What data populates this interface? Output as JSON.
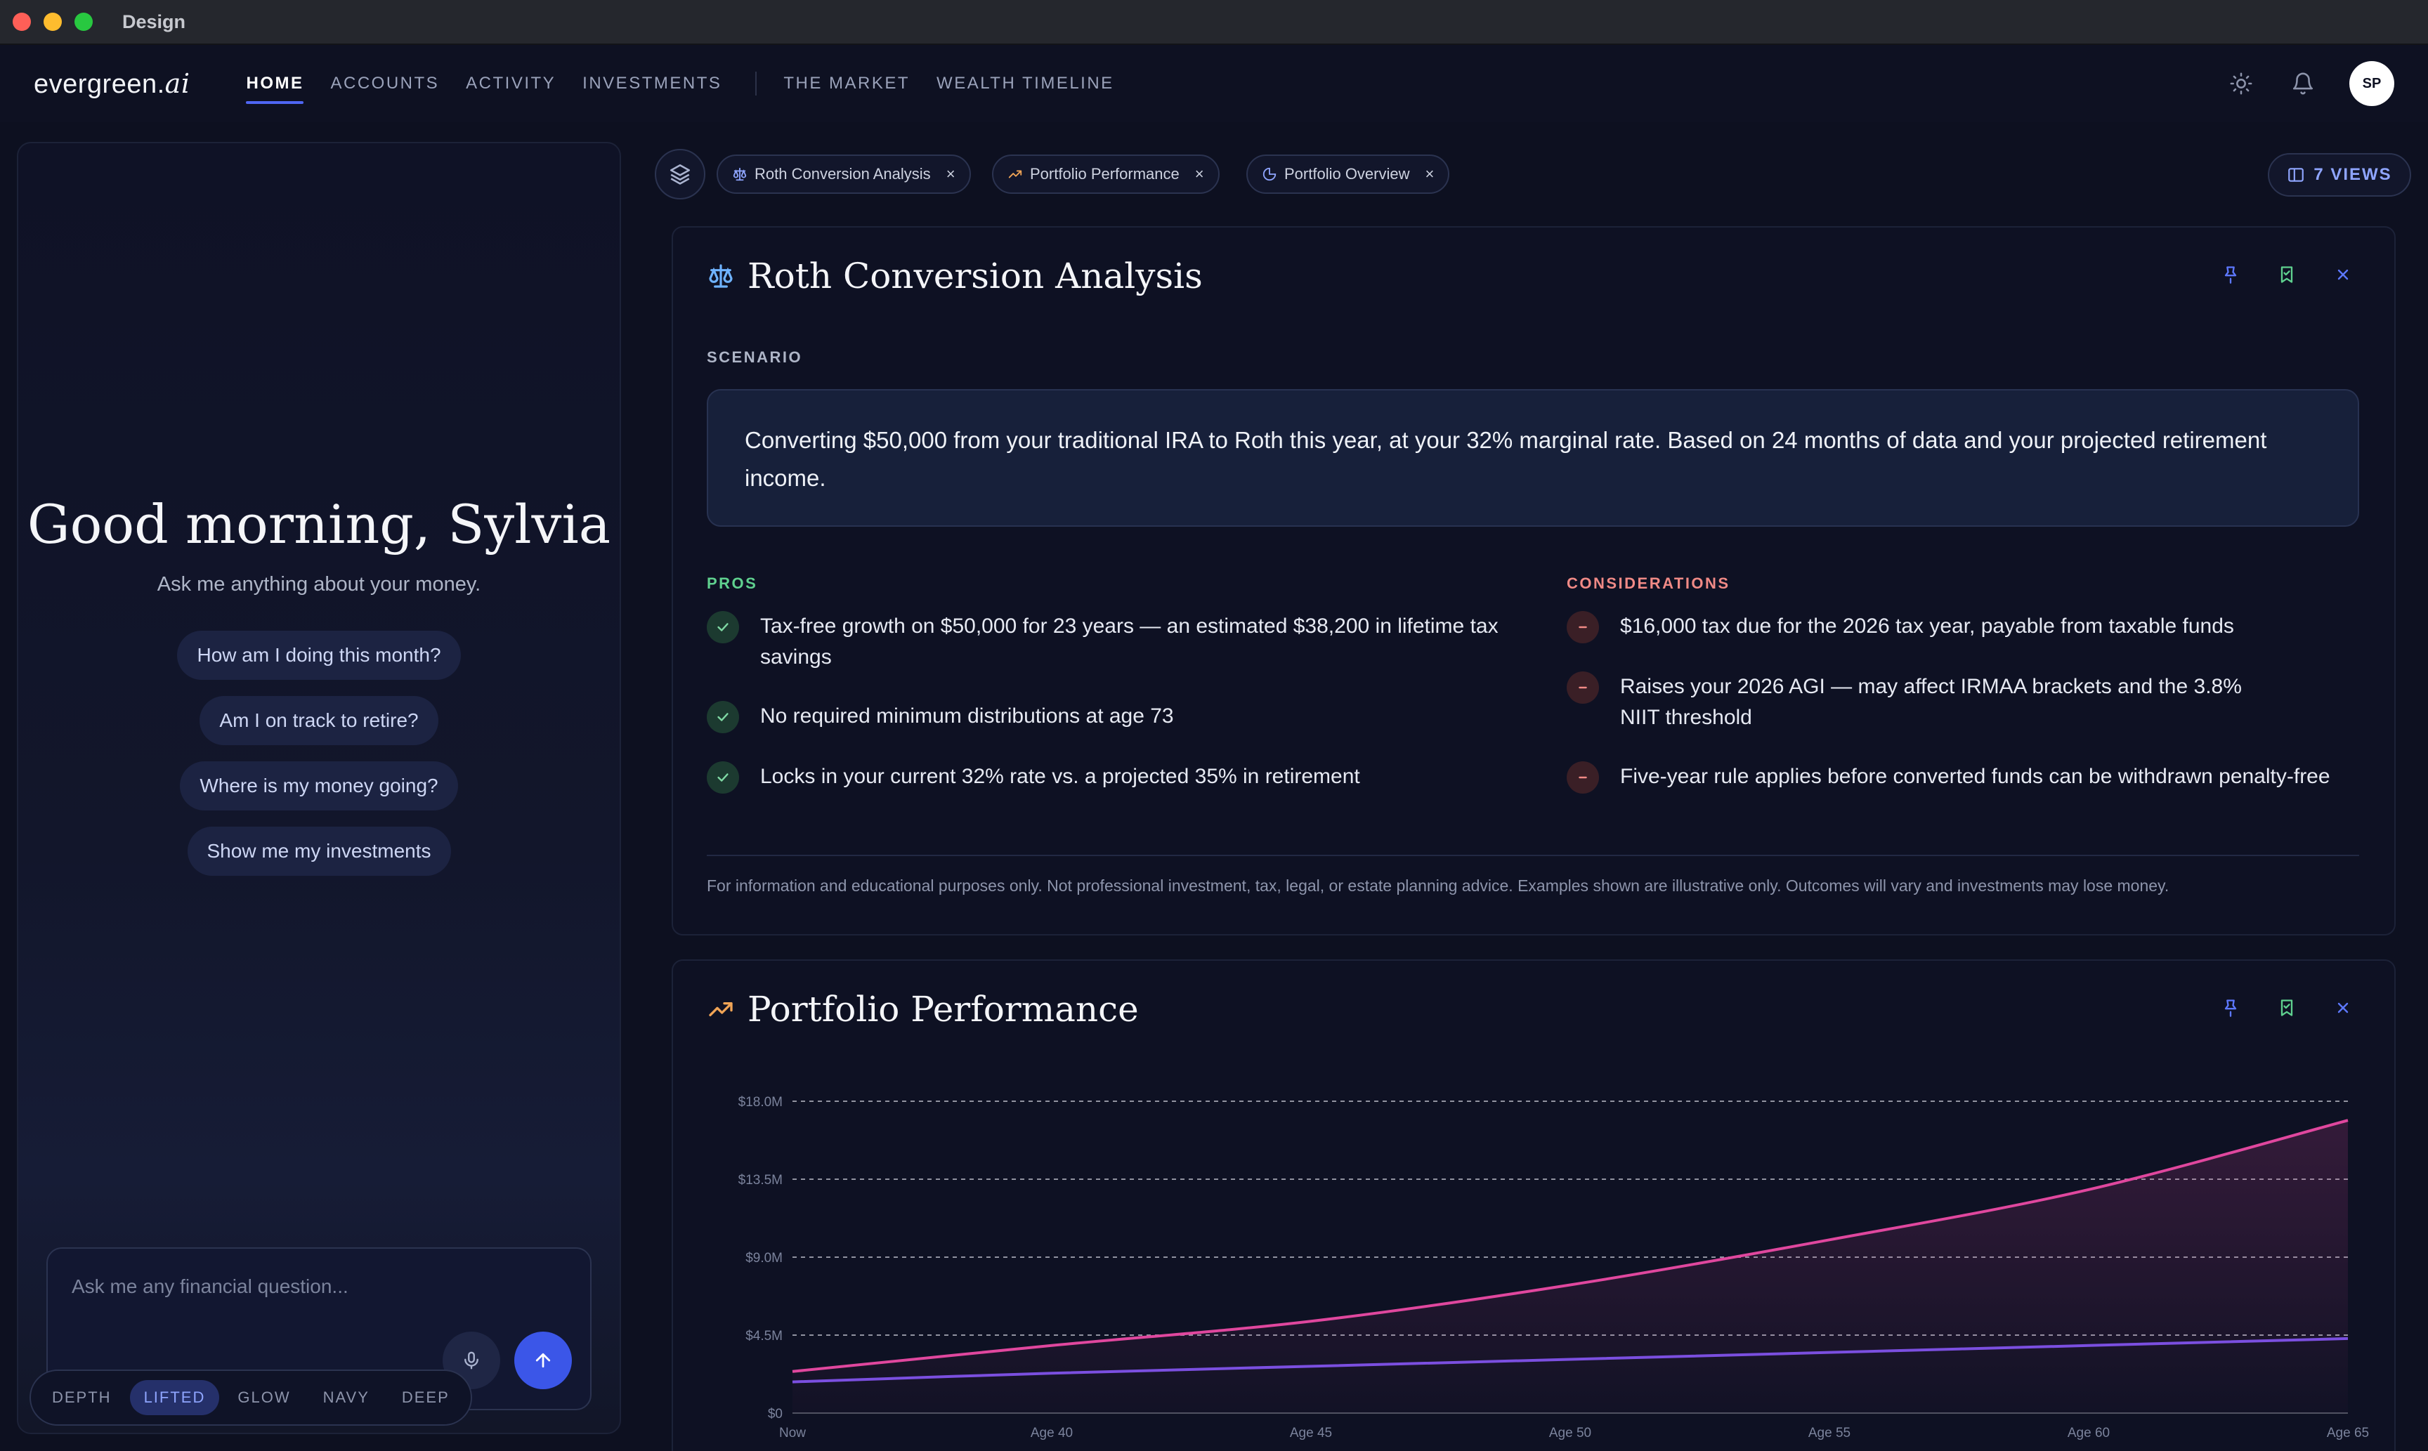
{
  "window": {
    "title": "Design"
  },
  "nav": {
    "logo_main": "evergreen.",
    "logo_suffix": "ai",
    "links": [
      "HOME",
      "ACCOUNTS",
      "ACTIVITY",
      "INVESTMENTS"
    ],
    "links_secondary": [
      "THE MARKET",
      "WEALTH TIMELINE"
    ],
    "active": "HOME",
    "avatar_initials": "SP"
  },
  "chat": {
    "greeting": "Good morning, Sylvia",
    "subtitle": "Ask me anything about your money.",
    "suggestions": [
      "How am I doing this month?",
      "Am I on track to retire?",
      "Where is my money going?",
      "Show me my investments"
    ],
    "input_placeholder": "Ask me any financial question...",
    "theme_options": [
      "DEPTH",
      "LIFTED",
      "GLOW",
      "NAVY",
      "DEEP"
    ],
    "theme_active": "LIFTED"
  },
  "view_tabs": [
    {
      "label": "Roth Conversion Analysis",
      "icon": "scale-icon"
    },
    {
      "label": "Portfolio Performance",
      "icon": "trending-up-icon"
    },
    {
      "label": "Portfolio Overview",
      "icon": "pie-chart-icon"
    }
  ],
  "views_button": "7 VIEWS",
  "roth": {
    "title": "Roth Conversion Analysis",
    "scenario_label": "SCENARIO",
    "scenario_text": "Converting $50,000 from your traditional IRA to Roth this year, at your 32% marginal rate. Based on 24 months of data and your projected retirement income.",
    "pros_label": "PROS",
    "pros": [
      "Tax-free growth on $50,000 for 23 years — an estimated $38,200 in lifetime tax savings",
      "No required minimum distributions at age 73",
      "Locks in your current 32% rate vs. a projected 35% in retirement"
    ],
    "cons_label": "CONSIDERATIONS",
    "cons": [
      "$16,000 tax due for the 2026 tax year, payable from taxable funds",
      "Raises your 2026 AGI — may affect IRMAA brackets and the 3.8% NIIT threshold",
      "Five-year rule applies before converted funds can be withdrawn penalty-free"
    ],
    "disclaimer": "For information and educational purposes only. Not professional investment, tax, legal, or estate planning advice. Examples shown are illustrative only. Outcomes will vary and investments may lose money."
  },
  "colors": {
    "accent": "#4f66f3",
    "pros_green": "#5fd18f",
    "cons_red": "#f08a86",
    "series_pink": "#e0479e",
    "series_purple": "#7b4fe0"
  },
  "chart_data": {
    "type": "line",
    "title": "Portfolio Performance",
    "x": [
      "Now",
      "Age 40",
      "Age 45",
      "Age 50",
      "Age 55",
      "Age 60",
      "Age 65"
    ],
    "y_ticks": [
      "$0",
      "$4.5M",
      "$9.0M",
      "$13.5M",
      "$18.0M"
    ],
    "ylim": [
      0,
      18.0
    ],
    "grid": true,
    "series": [
      {
        "color": "#e0479e",
        "values": [
          2.4,
          3.9,
          5.3,
          7.4,
          10.0,
          12.9,
          16.9
        ]
      },
      {
        "color": "#7b4fe0",
        "values": [
          1.8,
          2.3,
          2.7,
          3.1,
          3.5,
          3.9,
          4.3
        ]
      }
    ]
  }
}
